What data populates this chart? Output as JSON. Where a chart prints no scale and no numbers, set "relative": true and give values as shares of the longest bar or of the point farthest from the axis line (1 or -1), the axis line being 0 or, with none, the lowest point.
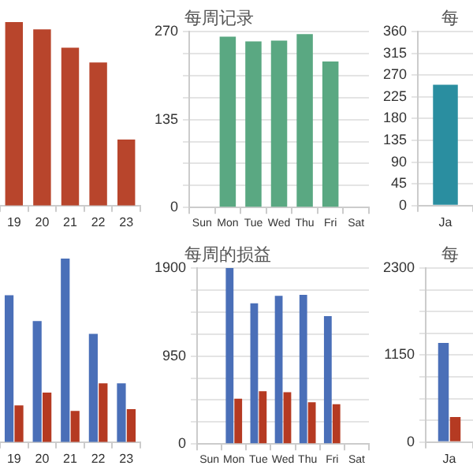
{
  "chart_data": [
    {
      "type": "bar",
      "relative": true,
      "categories": [
        "19",
        "20",
        "21",
        "22",
        "23"
      ],
      "series": [
        {
          "color": "#b8452c",
          "values": [
            1,
            0.96,
            0.86,
            0.78,
            0.36
          ]
        }
      ]
    },
    {
      "type": "bar",
      "title": "每周记录",
      "categories": [
        "Sun",
        "Mon",
        "Tue",
        "Wed",
        "Thu",
        "Fri",
        "Sat"
      ],
      "series": [
        {
          "color": "#5aa882",
          "values": [
            null,
            262,
            255,
            256,
            266,
            224,
            null
          ]
        }
      ],
      "ylim": [
        0,
        270
      ],
      "yticks": [
        0,
        {
          "value": 33.75,
          "label": null
        },
        {
          "value": 67.5,
          "label": null
        },
        {
          "value": 101.25,
          "label": null
        },
        135,
        {
          "value": 168.75,
          "label": null
        },
        {
          "value": 202.5,
          "label": null
        },
        {
          "value": 236.25,
          "label": null
        },
        270
      ],
      "grid": "y"
    },
    {
      "type": "bar",
      "title": "每",
      "categories": [
        "Ja"
      ],
      "series": [
        {
          "color": "#2a8ea0",
          "values": [
            250
          ]
        }
      ],
      "ylim": [
        0,
        360
      ],
      "yticks": [
        0,
        45,
        90,
        135,
        180,
        225,
        270,
        315,
        360
      ],
      "grid": "y"
    },
    {
      "type": "bar",
      "relative": true,
      "categories": [
        "19",
        "20",
        "21",
        "22",
        "23"
      ],
      "series": [
        {
          "color": "#4a6fb8",
          "values": [
            0.8,
            0.66,
            1,
            0.59,
            0.32
          ]
        },
        {
          "color": "#b53a22",
          "values": [
            0.2,
            0.27,
            0.17,
            0.32,
            0.18
          ]
        }
      ]
    },
    {
      "type": "bar",
      "title": "每周的损益",
      "categories": [
        "Sun",
        "Mon",
        "Tue",
        "Wed",
        "Thu",
        "Fri",
        "Sat"
      ],
      "series": [
        {
          "color": "#4a6fb8",
          "values": [
            null,
            1900,
            1520,
            1600,
            1610,
            1380,
            null
          ]
        },
        {
          "color": "#b53a22",
          "values": [
            null,
            490,
            570,
            560,
            450,
            430,
            null
          ]
        }
      ],
      "ylim": [
        0,
        1900
      ],
      "yticks": [
        0,
        {
          "value": 237.5,
          "label": null
        },
        {
          "value": 475,
          "label": null
        },
        {
          "value": 712.5,
          "label": null
        },
        950,
        {
          "value": 1187.5,
          "label": null
        },
        {
          "value": 1425,
          "label": null
        },
        {
          "value": 1662.5,
          "label": null
        },
        1900
      ],
      "grid": "y"
    },
    {
      "type": "bar",
      "title": "每",
      "categories": [
        "Ja"
      ],
      "series": [
        {
          "color": "#4a6fb8",
          "values": [
            1310
          ]
        },
        {
          "color": "#b53a22",
          "values": [
            330
          ]
        }
      ],
      "ylim": [
        0,
        2300
      ],
      "yticks": [
        0,
        {
          "value": 287.5,
          "label": null
        },
        {
          "value": 575,
          "label": null
        },
        {
          "value": 862.5,
          "label": null
        },
        1150,
        {
          "value": 1437.5,
          "label": null
        },
        {
          "value": 1725,
          "label": null
        },
        {
          "value": 2012.5,
          "label": null
        },
        2300
      ],
      "grid": "y"
    }
  ]
}
